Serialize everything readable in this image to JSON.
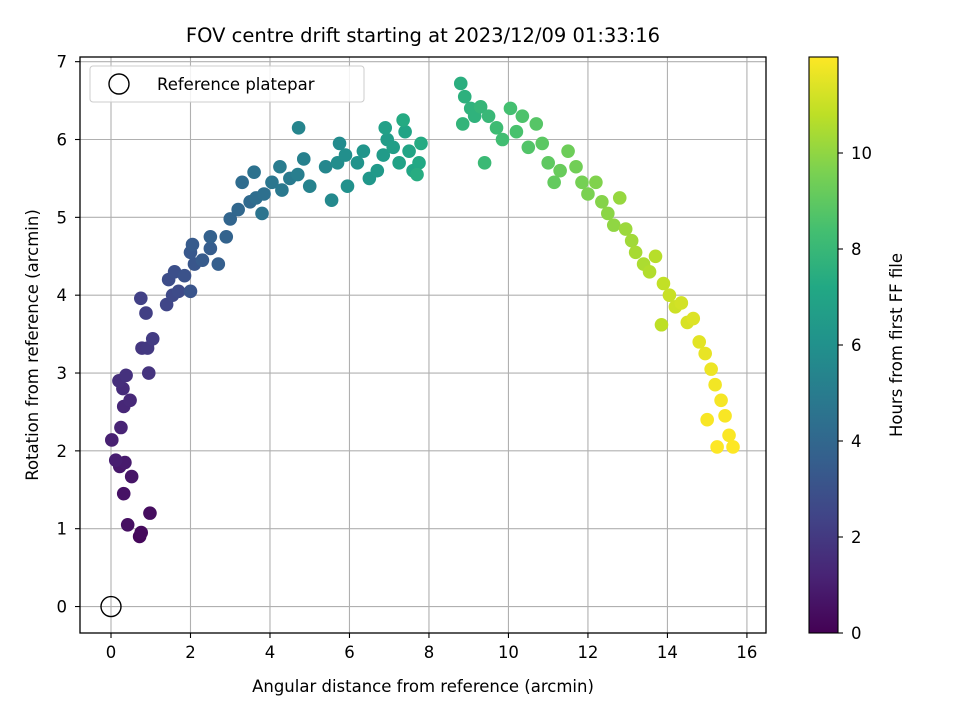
{
  "chart_data": {
    "type": "scatter",
    "title": "FOV centre drift starting at 2023/12/09 01:33:16",
    "xlabel": "Angular distance from reference (arcmin)",
    "ylabel": "Rotation from reference (arcmin)",
    "xlim": [
      -0.78,
      16.48
    ],
    "ylim": [
      -0.34,
      7.06
    ],
    "xticks": [
      0,
      2,
      4,
      6,
      8,
      10,
      12,
      14,
      16
    ],
    "yticks": [
      0,
      1,
      2,
      3,
      4,
      5,
      6,
      7
    ],
    "grid": true,
    "legend": {
      "position": "upper-left",
      "entries": [
        "Reference platepar"
      ]
    },
    "reference_point": {
      "x": 0,
      "y": 0
    },
    "colorbar": {
      "label": "Hours from first FF file",
      "range": [
        0,
        12
      ],
      "ticks": [
        0,
        2,
        4,
        6,
        8,
        10
      ],
      "colormap": "viridis"
    },
    "points": [
      [
        0.72,
        0.9,
        0.2
      ],
      [
        0.76,
        0.95,
        0.3
      ],
      [
        0.98,
        1.2,
        0.4
      ],
      [
        0.42,
        1.05,
        0.5
      ],
      [
        0.32,
        1.45,
        0.6
      ],
      [
        0.52,
        1.67,
        0.7
      ],
      [
        0.22,
        1.8,
        0.8
      ],
      [
        0.35,
        1.85,
        0.9
      ],
      [
        0.12,
        1.88,
        1.0
      ],
      [
        0.02,
        2.14,
        1.1
      ],
      [
        0.25,
        2.3,
        1.2
      ],
      [
        0.32,
        2.57,
        1.3
      ],
      [
        0.48,
        2.65,
        1.4
      ],
      [
        0.3,
        2.8,
        1.5
      ],
      [
        0.2,
        2.9,
        1.6
      ],
      [
        0.38,
        2.97,
        1.7
      ],
      [
        0.95,
        3.0,
        1.8
      ],
      [
        0.78,
        3.32,
        1.9
      ],
      [
        0.92,
        3.32,
        2.0
      ],
      [
        1.05,
        3.44,
        2.1
      ],
      [
        0.88,
        3.77,
        2.2
      ],
      [
        0.75,
        3.96,
        2.3
      ],
      [
        1.4,
        3.88,
        2.5
      ],
      [
        1.55,
        4.0,
        2.6
      ],
      [
        1.7,
        4.05,
        2.7
      ],
      [
        1.45,
        4.2,
        2.8
      ],
      [
        1.6,
        4.3,
        2.9
      ],
      [
        1.85,
        4.25,
        3.0
      ],
      [
        2.0,
        4.05,
        3.1
      ],
      [
        2.1,
        4.4,
        3.2
      ],
      [
        2.0,
        4.55,
        3.3
      ],
      [
        2.05,
        4.65,
        3.4
      ],
      [
        2.3,
        4.45,
        3.4
      ],
      [
        2.5,
        4.6,
        3.5
      ],
      [
        2.7,
        4.4,
        3.6
      ],
      [
        2.5,
        4.75,
        3.7
      ],
      [
        2.9,
        4.75,
        3.8
      ],
      [
        3.0,
        4.98,
        3.9
      ],
      [
        3.2,
        5.1,
        4.0
      ],
      [
        3.5,
        5.2,
        4.1
      ],
      [
        3.3,
        5.45,
        4.2
      ],
      [
        3.65,
        5.25,
        4.3
      ],
      [
        3.85,
        5.3,
        4.4
      ],
      [
        3.6,
        5.58,
        4.5
      ],
      [
        3.8,
        5.05,
        4.6
      ],
      [
        4.05,
        5.45,
        4.7
      ],
      [
        4.3,
        5.35,
        4.8
      ],
      [
        4.5,
        5.5,
        4.9
      ],
      [
        4.25,
        5.65,
        5.0
      ],
      [
        4.7,
        5.55,
        5.1
      ],
      [
        4.85,
        5.75,
        5.2
      ],
      [
        5.0,
        5.4,
        5.3
      ],
      [
        4.72,
        6.15,
        5.4
      ],
      [
        5.4,
        5.65,
        5.5
      ],
      [
        5.55,
        5.22,
        5.6
      ],
      [
        5.75,
        5.95,
        5.7
      ],
      [
        5.7,
        5.7,
        5.8
      ],
      [
        5.9,
        5.8,
        5.9
      ],
      [
        5.95,
        5.4,
        6.0
      ],
      [
        6.2,
        5.7,
        6.1
      ],
      [
        6.35,
        5.85,
        6.2
      ],
      [
        6.5,
        5.5,
        6.3
      ],
      [
        6.7,
        5.6,
        6.4
      ],
      [
        6.85,
        5.8,
        6.5
      ],
      [
        6.95,
        6.0,
        6.6
      ],
      [
        7.1,
        5.9,
        6.7
      ],
      [
        6.9,
        6.15,
        6.8
      ],
      [
        7.25,
        5.7,
        6.9
      ],
      [
        7.4,
        6.1,
        7.0
      ],
      [
        7.5,
        5.85,
        7.0
      ],
      [
        7.6,
        5.6,
        7.1
      ],
      [
        7.75,
        5.7,
        7.2
      ],
      [
        7.8,
        5.95,
        7.3
      ],
      [
        7.35,
        6.25,
        7.3
      ],
      [
        7.7,
        5.55,
        7.4
      ],
      [
        8.8,
        6.72,
        7.5
      ],
      [
        8.9,
        6.55,
        7.6
      ],
      [
        9.05,
        6.4,
        7.7
      ],
      [
        9.15,
        6.3,
        7.7
      ],
      [
        8.85,
        6.2,
        7.8
      ],
      [
        9.3,
        6.42,
        7.9
      ],
      [
        9.5,
        6.3,
        8.0
      ],
      [
        9.4,
        5.7,
        8.1
      ],
      [
        9.7,
        6.15,
        8.2
      ],
      [
        9.85,
        6.0,
        8.3
      ],
      [
        10.05,
        6.4,
        8.4
      ],
      [
        10.2,
        6.1,
        8.5
      ],
      [
        10.35,
        6.3,
        8.6
      ],
      [
        10.5,
        5.9,
        8.7
      ],
      [
        10.7,
        6.2,
        8.8
      ],
      [
        10.85,
        5.95,
        8.9
      ],
      [
        11.0,
        5.7,
        9.0
      ],
      [
        11.15,
        5.45,
        9.1
      ],
      [
        11.3,
        5.6,
        9.2
      ],
      [
        11.5,
        5.85,
        9.3
      ],
      [
        11.7,
        5.65,
        9.4
      ],
      [
        11.85,
        5.45,
        9.5
      ],
      [
        12.0,
        5.3,
        9.6
      ],
      [
        12.2,
        5.45,
        9.7
      ],
      [
        12.35,
        5.2,
        9.8
      ],
      [
        12.5,
        5.05,
        9.9
      ],
      [
        12.65,
        4.9,
        10.0
      ],
      [
        12.8,
        5.25,
        10.1
      ],
      [
        12.95,
        4.85,
        10.2
      ],
      [
        13.1,
        4.7,
        10.3
      ],
      [
        13.2,
        4.55,
        10.4
      ],
      [
        13.4,
        4.4,
        10.5
      ],
      [
        13.55,
        4.3,
        10.6
      ],
      [
        13.7,
        4.5,
        10.7
      ],
      [
        13.85,
        3.62,
        10.8
      ],
      [
        13.9,
        4.15,
        10.9
      ],
      [
        14.05,
        4.0,
        11.0
      ],
      [
        14.2,
        3.85,
        11.1
      ],
      [
        14.35,
        3.9,
        11.2
      ],
      [
        14.5,
        3.65,
        11.3
      ],
      [
        14.65,
        3.7,
        11.4
      ],
      [
        14.8,
        3.4,
        11.5
      ],
      [
        14.95,
        3.25,
        11.6
      ],
      [
        15.1,
        3.05,
        11.7
      ],
      [
        15.2,
        2.85,
        11.8
      ],
      [
        15.35,
        2.65,
        11.85
      ],
      [
        15.45,
        2.45,
        11.9
      ],
      [
        15.55,
        2.2,
        11.95
      ],
      [
        15.65,
        2.05,
        12.0
      ],
      [
        15.25,
        2.05,
        12.0
      ],
      [
        15.0,
        2.4,
        11.9
      ]
    ]
  }
}
